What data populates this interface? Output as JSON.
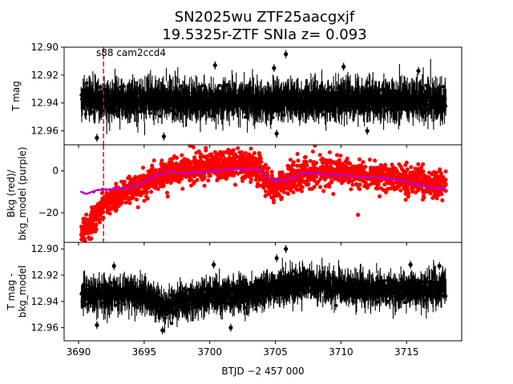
{
  "title": {
    "line1": "SN2025wu  ZTF25aacgxjf",
    "line2": "19.5325r-ZTF SNIa z= 0.093"
  },
  "annotation": "s88 cam2ccd4",
  "colors": {
    "phot": "#000000",
    "bkg": "#ff0000",
    "bkg_model": "#bf00bf",
    "marker_line": "#ff0000"
  },
  "chart_data": [
    {
      "type": "scatter",
      "panel": "top",
      "ylabel": "T mag",
      "y_inverted": true,
      "xlim": [
        3688.9,
        3719.2
      ],
      "ylim": [
        12.97,
        12.9
      ],
      "y_ticks": [
        "12.90",
        "12.92",
        "12.94",
        "12.96"
      ],
      "y_tick_values": [
        12.9,
        12.92,
        12.94,
        12.96
      ],
      "marker_x": 3691.9,
      "series": [
        {
          "x_range": [
            3690.2,
            3718.0
          ],
          "center": 12.938,
          "spread": 0.012,
          "points": [
            [
              3705.8,
              12.905
            ],
            [
              3704.9,
              12.915
            ],
            [
              3700.4,
              12.913
            ],
            [
              3710.2,
              12.914
            ],
            [
              3715.9,
              12.917
            ],
            [
              3696.5,
              12.964
            ],
            [
              3691.4,
              12.965
            ],
            [
              3705.1,
              12.962
            ],
            [
              3712.0,
              12.96
            ]
          ]
        }
      ]
    },
    {
      "type": "scatter",
      "panel": "middle",
      "ylabel": "Bkg (red)/\nbkg_model (purple)",
      "xlim": [
        3688.9,
        3719.2
      ],
      "ylim": [
        -34.2,
        12.5
      ],
      "y_ticks": [
        "0",
        "−20"
      ],
      "y_tick_values": [
        0,
        -20
      ],
      "marker_x": 3691.9,
      "series": [
        {
          "points": [
            [
              3690.2,
              -29
            ],
            [
              3691,
              -25
            ],
            [
              3692,
              -16
            ],
            [
              3693,
              -12
            ],
            [
              3694,
              -9
            ],
            [
              3695,
              -6
            ],
            [
              3696,
              -3
            ],
            [
              3697,
              -1
            ],
            [
              3698,
              0
            ],
            [
              3699,
              1
            ],
            [
              3700,
              2
            ],
            [
              3701,
              2.5
            ],
            [
              3702,
              3
            ],
            [
              3703,
              2.5
            ],
            [
              3703.9,
              1
            ],
            [
              3704.2,
              -5
            ],
            [
              3705,
              -8
            ],
            [
              3706,
              -5
            ],
            [
              3706.5,
              -4
            ],
            [
              3707,
              -2
            ],
            [
              3708,
              0
            ],
            [
              3709,
              0
            ],
            [
              3710,
              -1
            ],
            [
              3711,
              -1.5
            ],
            [
              3712,
              -2
            ],
            [
              3713,
              -2.5
            ],
            [
              3714,
              -3
            ],
            [
              3715,
              -4
            ],
            [
              3716,
              -5
            ],
            [
              3717,
              -6
            ],
            [
              3718,
              -7
            ]
          ],
          "spread": 3.2
        },
        {
          "points": [
            [
              3690.2,
              -10
            ],
            [
              3690.6,
              -11
            ],
            [
              3691.0,
              -10
            ],
            [
              3691.5,
              -9
            ],
            [
              3692,
              -9
            ],
            [
              3693,
              -8.5
            ],
            [
              3694,
              -8
            ],
            [
              3695,
              -5
            ],
            [
              3696,
              -2
            ],
            [
              3697,
              0
            ],
            [
              3698,
              -1
            ],
            [
              3699,
              -1
            ],
            [
              3700,
              0
            ],
            [
              3701,
              0.5
            ],
            [
              3702,
              1
            ],
            [
              3703,
              1
            ],
            [
              3703.9,
              0.5
            ],
            [
              3704.3,
              -3
            ],
            [
              3705,
              -5
            ],
            [
              3706,
              -4
            ],
            [
              3706.5,
              -3
            ],
            [
              3707,
              -1
            ],
            [
              3708,
              -1
            ],
            [
              3709,
              -2
            ],
            [
              3710,
              -2
            ],
            [
              3711,
              -2.5
            ],
            [
              3712,
              -3
            ],
            [
              3713,
              -3
            ],
            [
              3714,
              -4
            ],
            [
              3715,
              -5
            ],
            [
              3716,
              -7
            ],
            [
              3717,
              -8
            ],
            [
              3718,
              -9
            ]
          ]
        }
      ],
      "outliers": [
        [
          3711.3,
          -21
        ],
        [
          3698.5,
          12
        ],
        [
          3699.7,
          11
        ]
      ]
    },
    {
      "type": "scatter",
      "panel": "bottom",
      "ylabel": "T mag -\nbkg_model",
      "y_inverted": true,
      "xlabel": "BTJD −2 457 000",
      "xlim": [
        3688.9,
        3719.2
      ],
      "ylim": [
        12.97,
        12.895
      ],
      "x_ticks": [
        "3690",
        "3695",
        "3700",
        "3705",
        "3710",
        "3715"
      ],
      "x_tick_values": [
        3690,
        3695,
        3700,
        3705,
        3710,
        3715
      ],
      "y_ticks": [
        "12.90",
        "12.92",
        "12.94",
        "12.96"
      ],
      "y_tick_values": [
        12.9,
        12.92,
        12.94,
        12.96
      ],
      "series": [
        {
          "x_range": [
            3690.2,
            3718.0
          ],
          "center_points": [
            [
              3690.2,
              12.935
            ],
            [
              3695,
              12.935
            ],
            [
              3696.5,
              12.945
            ],
            [
              3698,
              12.94
            ],
            [
              3700,
              12.935
            ],
            [
              3703,
              12.935
            ],
            [
              3705,
              12.928
            ],
            [
              3707,
              12.925
            ],
            [
              3710,
              12.93
            ],
            [
              3714,
              12.932
            ],
            [
              3718,
              12.93
            ]
          ],
          "spread": 0.011,
          "points": [
            [
              3705.8,
              12.9
            ],
            [
              3705.1,
              12.907
            ],
            [
              3700.3,
              12.912
            ],
            [
              3692.7,
              12.913
            ],
            [
              3715.3,
              12.912
            ],
            [
              3717.5,
              12.913
            ],
            [
              3696.4,
              12.962
            ],
            [
              3701.6,
              12.96
            ],
            [
              3691.4,
              12.958
            ]
          ]
        }
      ]
    }
  ]
}
